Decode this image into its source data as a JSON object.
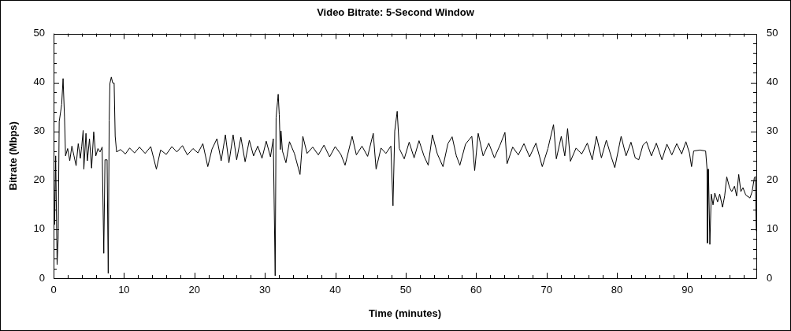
{
  "chart_data": {
    "type": "line",
    "title": "Video Bitrate: 5-Second Window",
    "xlabel": "Time (minutes)",
    "ylabel": "Bitrate (Mbps)",
    "xlim": [
      0,
      99.8
    ],
    "xticks": [
      0,
      {
        "value": 2,
        "label": null
      },
      {
        "value": 4,
        "label": null
      },
      {
        "value": 6,
        "label": null
      },
      {
        "value": 8,
        "label": null
      },
      10,
      {
        "value": 12,
        "label": null
      },
      {
        "value": 14,
        "label": null
      },
      {
        "value": 16,
        "label": null
      },
      {
        "value": 18,
        "label": null
      },
      20,
      {
        "value": 22,
        "label": null
      },
      {
        "value": 24,
        "label": null
      },
      {
        "value": 26,
        "label": null
      },
      {
        "value": 28,
        "label": null
      },
      30,
      {
        "value": 32,
        "label": null
      },
      {
        "value": 34,
        "label": null
      },
      {
        "value": 36,
        "label": null
      },
      {
        "value": 38,
        "label": null
      },
      40,
      {
        "value": 42,
        "label": null
      },
      {
        "value": 44,
        "label": null
      },
      {
        "value": 46,
        "label": null
      },
      {
        "value": 48,
        "label": null
      },
      50,
      {
        "value": 52,
        "label": null
      },
      {
        "value": 54,
        "label": null
      },
      {
        "value": 56,
        "label": null
      },
      {
        "value": 58,
        "label": null
      },
      60,
      {
        "value": 62,
        "label": null
      },
      {
        "value": 64,
        "label": null
      },
      {
        "value": 66,
        "label": null
      },
      {
        "value": 68,
        "label": null
      },
      70,
      {
        "value": 72,
        "label": null
      },
      {
        "value": 74,
        "label": null
      },
      {
        "value": 76,
        "label": null
      },
      {
        "value": 78,
        "label": null
      },
      80,
      {
        "value": 82,
        "label": null
      },
      {
        "value": 84,
        "label": null
      },
      {
        "value": 86,
        "label": null
      },
      {
        "value": 88,
        "label": null
      },
      90,
      {
        "value": 92,
        "label": null
      },
      {
        "value": 94,
        "label": null
      },
      {
        "value": 96,
        "label": null
      },
      {
        "value": 98,
        "label": null
      }
    ],
    "ylim": [
      0,
      50
    ],
    "yticks": [
      0,
      {
        "value": 2,
        "label": null
      },
      {
        "value": 4,
        "label": null
      },
      {
        "value": 6,
        "label": null
      },
      {
        "value": 8,
        "label": null
      },
      10,
      {
        "value": 12,
        "label": null
      },
      {
        "value": 14,
        "label": null
      },
      {
        "value": 16,
        "label": null
      },
      {
        "value": 18,
        "label": null
      },
      20,
      {
        "value": 22,
        "label": null
      },
      {
        "value": 24,
        "label": null
      },
      {
        "value": 26,
        "label": null
      },
      {
        "value": 28,
        "label": null
      },
      30,
      {
        "value": 32,
        "label": null
      },
      {
        "value": 34,
        "label": null
      },
      {
        "value": 36,
        "label": null
      },
      {
        "value": 38,
        "label": null
      },
      40,
      {
        "value": 42,
        "label": null
      },
      {
        "value": 44,
        "label": null
      },
      {
        "value": 46,
        "label": null
      },
      {
        "value": 48,
        "label": null
      },
      50
    ],
    "y2lim": [
      0,
      50
    ],
    "y2ticks": [
      0,
      {
        "value": 2,
        "label": null
      },
      {
        "value": 4,
        "label": null
      },
      {
        "value": 6,
        "label": null
      },
      {
        "value": 8,
        "label": null
      },
      10,
      {
        "value": 12,
        "label": null
      },
      {
        "value": 14,
        "label": null
      },
      {
        "value": 16,
        "label": null
      },
      {
        "value": 18,
        "label": null
      },
      20,
      {
        "value": 22,
        "label": null
      },
      {
        "value": 24,
        "label": null
      },
      {
        "value": 26,
        "label": null
      },
      {
        "value": 28,
        "label": null
      },
      30,
      {
        "value": 32,
        "label": null
      },
      {
        "value": 34,
        "label": null
      },
      {
        "value": 36,
        "label": null
      },
      {
        "value": 38,
        "label": null
      },
      40,
      {
        "value": 42,
        "label": null
      },
      {
        "value": 44,
        "label": null
      },
      {
        "value": 46,
        "label": null
      },
      {
        "value": 48,
        "label": null
      },
      50
    ],
    "legend": false,
    "series": [
      {
        "color": "#000000",
        "x": [
          0,
          0.15,
          0.3,
          0.5,
          0.65,
          0.8,
          1.0,
          1.15,
          1.35,
          1.55,
          1.7,
          2.0,
          2.3,
          2.6,
          2.9,
          3.2,
          3.5,
          3.8,
          4.0,
          4.2,
          4.3,
          4.6,
          4.8,
          5.1,
          5.4,
          5.7,
          6.0,
          6.3,
          6.6,
          6.9,
          7.13,
          7.3,
          7.6,
          7.76,
          7.9,
          8.0,
          8.2,
          8.4,
          8.6,
          8.75,
          8.95,
          9.5,
          10.2,
          10.8,
          11.5,
          12.2,
          13.0,
          13.8,
          14.6,
          15.2,
          16.0,
          16.8,
          17.5,
          18.3,
          19.0,
          19.8,
          20.5,
          21.2,
          21.9,
          22.5,
          23.2,
          23.8,
          24.4,
          24.9,
          25.5,
          26.0,
          26.6,
          27.2,
          27.8,
          28.4,
          29.0,
          29.6,
          30.2,
          30.8,
          31.2,
          31.47,
          31.6,
          31.8,
          31.9,
          32.05,
          32.2,
          32.3,
          32.5,
          33.0,
          33.5,
          34.2,
          35.0,
          35.4,
          36.0,
          36.8,
          37.6,
          38.4,
          39.2,
          40.0,
          40.8,
          41.4,
          42.4,
          43.0,
          43.8,
          44.6,
          45.4,
          45.8,
          46.5,
          47.2,
          47.9,
          48.2,
          48.45,
          48.8,
          49.1,
          49.8,
          50.5,
          51.2,
          51.9,
          52.6,
          53.2,
          53.8,
          54.5,
          55.3,
          56.0,
          56.6,
          57.2,
          57.7,
          58.5,
          59.4,
          59.8,
          60.3,
          61.0,
          61.8,
          62.6,
          63.4,
          64.1,
          64.4,
          65.2,
          66.0,
          66.8,
          67.6,
          68.5,
          69.4,
          70.2,
          71.0,
          71.4,
          72.1,
          72.6,
          73.0,
          73.4,
          74.2,
          75.0,
          75.8,
          76.5,
          77.1,
          77.8,
          78.5,
          79.2,
          79.7,
          80.6,
          81.3,
          82.0,
          82.6,
          83.1,
          83.7,
          84.2,
          84.9,
          85.6,
          86.4,
          87.1,
          87.8,
          88.5,
          89.2,
          89.8,
          90.3,
          90.6,
          90.9,
          91.8,
          92.6,
          92.8,
          92.85,
          93.0,
          93.2,
          93.4,
          93.65,
          93.9,
          94.3,
          94.6,
          95.0,
          95.3,
          95.6,
          96.0,
          96.3,
          96.7,
          97.0,
          97.3,
          97.6,
          97.9,
          98.3,
          98.9,
          99.2,
          99.5,
          99.65,
          99.8
        ],
        "values": [
          25,
          11,
          25,
          2.8,
          8,
          32,
          34,
          35.5,
          40.8,
          33,
          25,
          26.5,
          24,
          27,
          25,
          23,
          27.5,
          24.5,
          27,
          30.2,
          22.3,
          29.6,
          24,
          28.5,
          22.5,
          29.9,
          25,
          26.5,
          25.8,
          26.8,
          5.1,
          24.2,
          24.2,
          1.0,
          32.3,
          39.8,
          41.1,
          39.9,
          39.9,
          29,
          25.8,
          26.3,
          25.4,
          26.6,
          25.6,
          26.8,
          25.5,
          26.9,
          22.3,
          26.2,
          25.3,
          26.9,
          25.8,
          27.1,
          25.2,
          26.5,
          25.6,
          27.5,
          22.8,
          26.4,
          28.5,
          24,
          29.3,
          23.6,
          29.3,
          24.2,
          28.8,
          23.8,
          28.2,
          25,
          27,
          24.5,
          28,
          24.8,
          28.5,
          0.5,
          32.8,
          36,
          37.6,
          33.4,
          26.3,
          30.1,
          26,
          23.6,
          27.9,
          25.5,
          21.2,
          29,
          25.5,
          26.8,
          25.2,
          27.2,
          24.8,
          26.9,
          25.3,
          23.1,
          29,
          25.2,
          27,
          24.9,
          29.6,
          22.3,
          26.6,
          25.5,
          27,
          14.8,
          30.1,
          34.1,
          26.5,
          24.4,
          27.8,
          24.6,
          28.1,
          25,
          23.1,
          29.3,
          25.4,
          22.8,
          27.5,
          28.9,
          25,
          23.1,
          27.4,
          29,
          22,
          29.6,
          25,
          27.6,
          24.6,
          27.2,
          29.8,
          23.4,
          26.8,
          25.2,
          27.5,
          24.8,
          27.6,
          22.8,
          26.5,
          31.4,
          24.4,
          29,
          25,
          30.6,
          23.9,
          26.6,
          25.4,
          27.6,
          24.2,
          29,
          24.6,
          28.2,
          24.8,
          22.6,
          29,
          25,
          27.8,
          24.6,
          24.2,
          27.2,
          27.9,
          25,
          27.6,
          24.2,
          27.4,
          25.2,
          27.5,
          25.4,
          27.9,
          25.6,
          22.8,
          26,
          26.2,
          26,
          22.3,
          7.2,
          22.3,
          6.9,
          17.2,
          15,
          17.4,
          15.6,
          17.2,
          14.5,
          16.8,
          20.7,
          18.5,
          17.7,
          18.8,
          16.8,
          21.2,
          17.7,
          18.5,
          17,
          16.4,
          17.7,
          20.4,
          20.8,
          9.6
        ]
      }
    ]
  }
}
